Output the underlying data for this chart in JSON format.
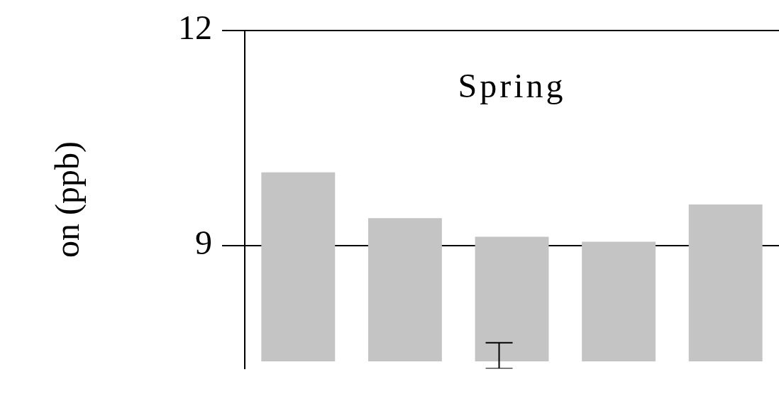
{
  "chart_data": {
    "type": "bar",
    "ylabel": "on (ppb)",
    "annotations": [
      "Spring"
    ],
    "categories": [
      null,
      null,
      null,
      null,
      null
    ],
    "base": [
      7.38,
      7.38,
      7.38,
      7.38,
      7.38
    ],
    "values": [
      2.64,
      2.0,
      1.74,
      1.67,
      2.19
    ],
    "errors": [
      null,
      null,
      [
        7.28,
        7.64
      ],
      null,
      null
    ],
    "color": "#c4c4c4",
    "ylim": [
      7.28,
      12
    ],
    "yticks": [
      9,
      12
    ],
    "grid": "y"
  }
}
